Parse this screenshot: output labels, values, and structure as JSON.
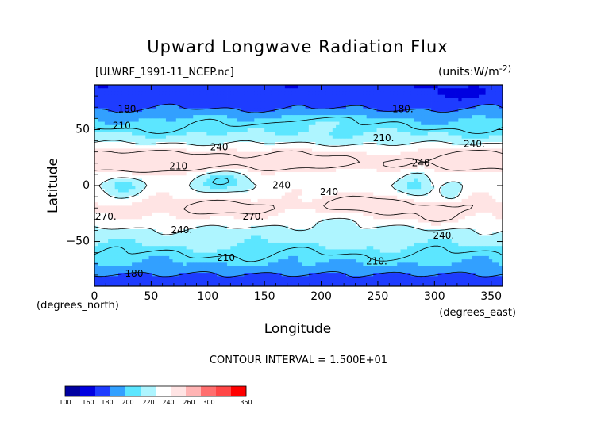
{
  "chart_data": {
    "type": "heatmap",
    "title": "Upward Longwave Radiation Flux",
    "source_file": "[ULWRF_1991-11_NCEP.nc]",
    "units_label": "(units:W/m^2)",
    "units_text_main": "(units:W/m",
    "units_text_sup": "-2)",
    "xlabel": "Longitude",
    "ylabel": "Latitude",
    "x_unit_label": "(degrees_east)",
    "y_unit_label": "(degrees_north)",
    "xlim": [
      0,
      360
    ],
    "ylim": [
      -90,
      90
    ],
    "x_ticks": [
      0,
      50,
      100,
      150,
      200,
      250,
      300,
      350
    ],
    "y_ticks": [
      50,
      0,
      -50
    ],
    "y_tick_labels": [
      "50",
      "0",
      "−50"
    ],
    "contour_interval_label": "CONTOUR INTERVAL = 1.500E+01",
    "contour_labels": [
      {
        "text": "180.",
        "lon": 30,
        "lat": 68
      },
      {
        "text": "180.",
        "lon": 272,
        "lat": 68
      },
      {
        "text": "210",
        "lon": 24,
        "lat": 53
      },
      {
        "text": "210.",
        "lon": 255,
        "lat": 42
      },
      {
        "text": "240",
        "lon": 110,
        "lat": 34
      },
      {
        "text": "240.",
        "lon": 335,
        "lat": 37
      },
      {
        "text": "210",
        "lon": 74,
        "lat": 17
      },
      {
        "text": "240",
        "lon": 288,
        "lat": 20
      },
      {
        "text": "240",
        "lon": 165,
        "lat": 0
      },
      {
        "text": "240",
        "lon": 207,
        "lat": -6
      },
      {
        "text": "270.",
        "lon": 10,
        "lat": -28
      },
      {
        "text": "270.",
        "lon": 140,
        "lat": -28
      },
      {
        "text": "240.",
        "lon": 77,
        "lat": -40
      },
      {
        "text": "240.",
        "lon": 308,
        "lat": -45
      },
      {
        "text": "210",
        "lon": 116,
        "lat": -65
      },
      {
        "text": "210.",
        "lon": 249,
        "lat": -68
      },
      {
        "text": "180",
        "lon": 35,
        "lat": -79
      }
    ],
    "colorbar": {
      "levels": [
        100,
        160,
        180,
        200,
        220,
        240,
        260,
        300,
        350
      ],
      "colors": [
        "#0000a0",
        "#0000e0",
        "#1e3cff",
        "#32a0ff",
        "#5ce6ff",
        "#aef5ff",
        "#ffffff",
        "#ffe4e4",
        "#ffb4b4",
        "#ff6e6e",
        "#ff4646",
        "#ff0000"
      ]
    },
    "bands": [
      {
        "lat": 90,
        "value": 165
      },
      {
        "lat": 80,
        "value": 168
      },
      {
        "lat": 70,
        "value": 176
      },
      {
        "lat": 60,
        "value": 200
      },
      {
        "lat": 50,
        "value": 212
      },
      {
        "lat": 40,
        "value": 232
      },
      {
        "lat": 30,
        "value": 258
      },
      {
        "lat": 20,
        "value": 270
      },
      {
        "lat": 10,
        "value": 252
      },
      {
        "lat": 0,
        "value": 248
      },
      {
        "lat": -10,
        "value": 255
      },
      {
        "lat": -20,
        "value": 268
      },
      {
        "lat": -30,
        "value": 258
      },
      {
        "lat": -40,
        "value": 236
      },
      {
        "lat": -50,
        "value": 225
      },
      {
        "lat": -60,
        "value": 212
      },
      {
        "lat": -70,
        "value": 200
      },
      {
        "lat": -80,
        "value": 178
      },
      {
        "lat": -90,
        "value": 165
      }
    ],
    "features": [
      {
        "lon": 55,
        "lat": 20,
        "rlon": 55,
        "rlat": 12,
        "amp": 30
      },
      {
        "lon": 175,
        "lat": 22,
        "rlon": 40,
        "rlat": 10,
        "amp": 20
      },
      {
        "lon": 330,
        "lat": 23,
        "rlon": 30,
        "rlat": 10,
        "amp": 25
      },
      {
        "lon": 25,
        "lat": 0,
        "rlon": 18,
        "rlat": 10,
        "amp": -45
      },
      {
        "lon": 115,
        "lat": 5,
        "rlon": 25,
        "rlat": 10,
        "amp": -40
      },
      {
        "lon": 285,
        "lat": 0,
        "rlon": 15,
        "rlat": 12,
        "amp": -38
      },
      {
        "lon": 315,
        "lat": -5,
        "rlon": 10,
        "rlat": 10,
        "amp": -30
      },
      {
        "lon": 250,
        "lat": -15,
        "rlon": 35,
        "rlat": 10,
        "amp": 22
      },
      {
        "lon": 120,
        "lat": -18,
        "rlon": 30,
        "rlat": 8,
        "amp": 18
      },
      {
        "lon": 300,
        "lat": -25,
        "rlon": 18,
        "rlat": 10,
        "amp": 20
      },
      {
        "lon": 205,
        "lat": -30,
        "rlon": 35,
        "rlat": 8,
        "amp": -20
      },
      {
        "lon": 320,
        "lat": 82,
        "rlon": 20,
        "rlat": 6,
        "amp": -20
      },
      {
        "lon": 190,
        "lat": 55,
        "rlon": 30,
        "rlat": 8,
        "amp": 20
      }
    ]
  }
}
